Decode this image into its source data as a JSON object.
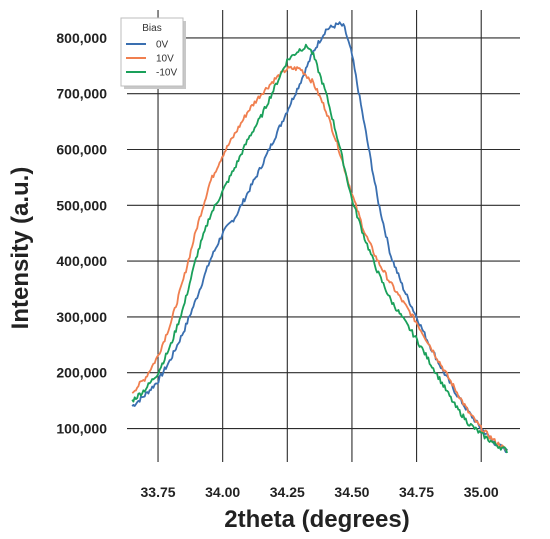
{
  "chart_data": {
    "type": "line",
    "title": "",
    "xlabel": "2theta (degrees)",
    "ylabel": "Intensity (a.u.)",
    "xlim": [
      33.63,
      35.15
    ],
    "ylim": [
      40000,
      850000
    ],
    "xticks": [
      33.75,
      34.0,
      34.25,
      34.5,
      34.75,
      35.0
    ],
    "xtick_labels": [
      "33.75",
      "34.00",
      "34.25",
      "34.50",
      "34.75",
      "35.00"
    ],
    "yticks": [
      100000,
      200000,
      300000,
      400000,
      500000,
      600000,
      700000,
      800000
    ],
    "ytick_labels": [
      "100,000",
      "200,000",
      "300,000",
      "400,000",
      "500,000",
      "600,000",
      "700,000",
      "800,000"
    ],
    "grid": true,
    "legend": {
      "title": "Bias",
      "position": "top-left"
    },
    "series": [
      {
        "name": "0V",
        "color": "#3a6fb0",
        "x": [
          33.65,
          33.7,
          33.75,
          33.8,
          33.85,
          33.9,
          33.95,
          34.0,
          34.05,
          34.1,
          34.15,
          34.2,
          34.25,
          34.3,
          34.35,
          34.4,
          34.45,
          34.47,
          34.5,
          34.55,
          34.6,
          34.65,
          34.7,
          34.75,
          34.8,
          34.85,
          34.9,
          34.95,
          35.0,
          35.05,
          35.1
        ],
        "y": [
          140000,
          160000,
          185000,
          225000,
          275000,
          335000,
          400000,
          450000,
          480000,
          525000,
          570000,
          620000,
          670000,
          720000,
          775000,
          815000,
          825000,
          820000,
          770000,
          640000,
          510000,
          410000,
          350000,
          300000,
          250000,
          205000,
          165000,
          130000,
          100000,
          75000,
          60000
        ]
      },
      {
        "name": "10V",
        "color": "#f07f4f",
        "x": [
          33.65,
          33.7,
          33.75,
          33.8,
          33.85,
          33.9,
          33.95,
          34.0,
          34.05,
          34.1,
          34.15,
          34.2,
          34.25,
          34.3,
          34.35,
          34.4,
          34.45,
          34.5,
          34.55,
          34.6,
          34.65,
          34.7,
          34.75,
          34.8,
          34.85,
          34.9,
          34.95,
          35.0,
          35.05,
          35.1
        ],
        "y": [
          165000,
          190000,
          230000,
          290000,
          370000,
          460000,
          540000,
          590000,
          630000,
          670000,
          700000,
          725000,
          745000,
          745000,
          720000,
          670000,
          600000,
          520000,
          450000,
          400000,
          360000,
          325000,
          290000,
          250000,
          210000,
          170000,
          130000,
          100000,
          78000,
          60000
        ]
      },
      {
        "name": "-10V",
        "color": "#1aa05a",
        "x": [
          33.65,
          33.7,
          33.75,
          33.8,
          33.85,
          33.9,
          33.95,
          34.0,
          34.05,
          34.1,
          34.15,
          34.2,
          34.25,
          34.3,
          34.33,
          34.35,
          34.4,
          34.45,
          34.5,
          34.55,
          34.6,
          34.65,
          34.7,
          34.75,
          34.8,
          34.85,
          34.9,
          34.95,
          35.0,
          35.05,
          35.1
        ],
        "y": [
          150000,
          170000,
          200000,
          250000,
          320000,
          410000,
          480000,
          525000,
          570000,
          620000,
          660000,
          710000,
          760000,
          780000,
          785000,
          770000,
          700000,
          610000,
          510000,
          440000,
          380000,
          330000,
          295000,
          260000,
          220000,
          180000,
          140000,
          110000,
          90000,
          73000,
          60000
        ]
      }
    ]
  }
}
